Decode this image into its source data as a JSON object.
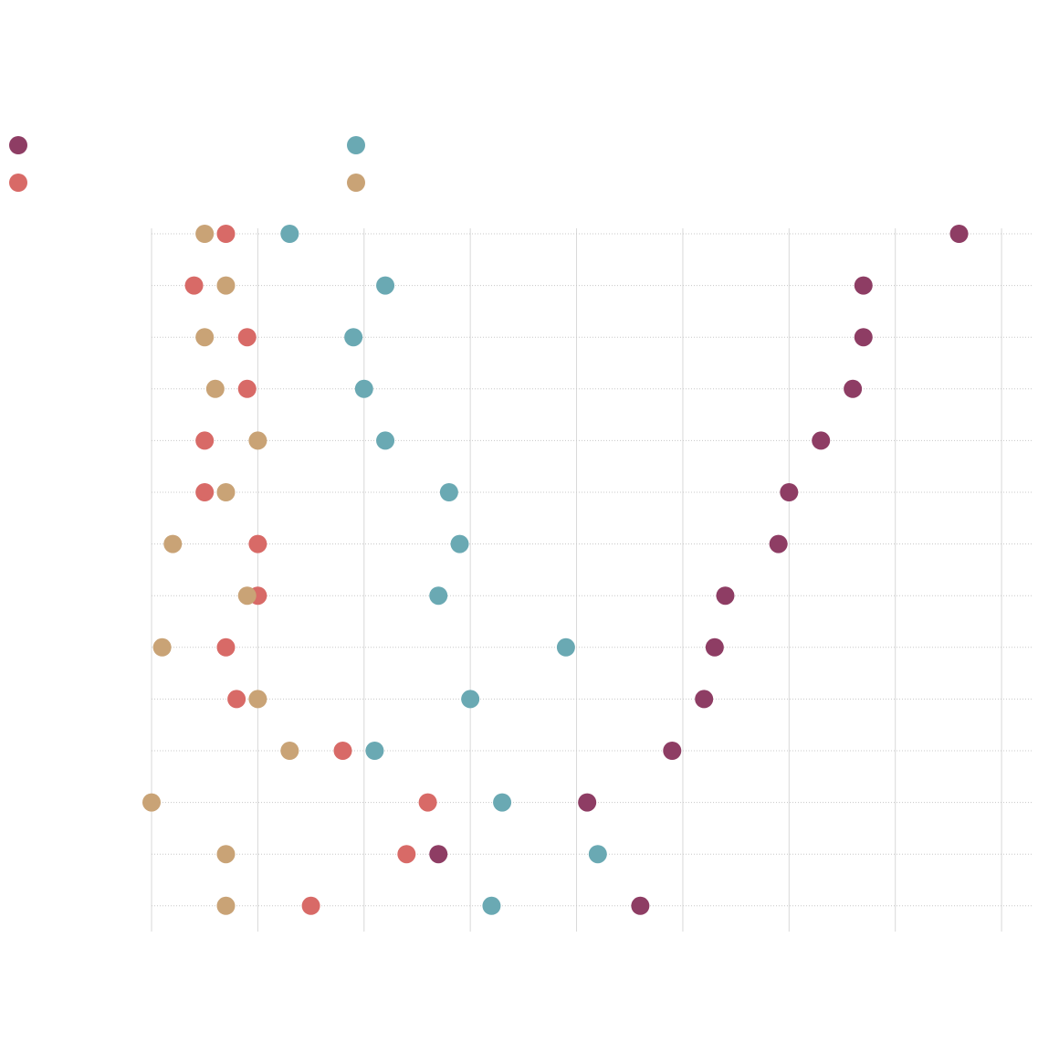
{
  "chart_data": {
    "type": "dot",
    "categories": [
      null,
      null,
      null,
      null,
      null,
      null,
      null,
      null,
      null,
      null,
      null,
      null,
      null,
      null
    ],
    "series": [
      {
        "color": "#8e3d64",
        "values": [
          7.6,
          6.7,
          6.7,
          6.6,
          6.3,
          6.0,
          5.9,
          5.4,
          5.3,
          5.2,
          4.9,
          4.1,
          2.7,
          4.6
        ]
      },
      {
        "color": "#6aa9b3",
        "values": [
          1.3,
          2.2,
          1.9,
          2.0,
          2.2,
          2.8,
          2.9,
          2.7,
          3.9,
          3.0,
          2.1,
          3.3,
          4.2,
          3.2
        ]
      },
      {
        "color": "#d86a67",
        "values": [
          0.7,
          0.4,
          0.9,
          0.9,
          0.5,
          0.5,
          1.0,
          1.0,
          0.7,
          0.8,
          1.8,
          2.6,
          2.4,
          1.5
        ]
      },
      {
        "color": "#c9a376",
        "values": [
          0.5,
          0.7,
          0.5,
          0.6,
          1.0,
          0.7,
          0.2,
          0.9,
          0.1,
          1.0,
          1.3,
          0.0,
          0.7,
          0.7
        ]
      }
    ],
    "xlim": [
      0,
      8.3
    ],
    "xticks": [
      0,
      1,
      2,
      3,
      4,
      5,
      6,
      7,
      8
    ],
    "grid": true
  }
}
